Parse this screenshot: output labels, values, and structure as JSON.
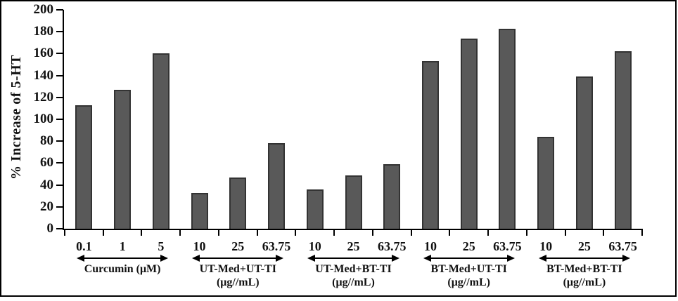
{
  "figure": {
    "background": "#ffffff",
    "frame_color": "#000000",
    "text_color": "#111111"
  },
  "chart_data": {
    "type": "bar",
    "title": "",
    "xlabel": "",
    "ylabel": "% Increase of 5-HT",
    "ylim": [
      0,
      200
    ],
    "ytick_step": 20,
    "yticks": [
      0,
      20,
      40,
      60,
      80,
      100,
      120,
      140,
      160,
      180,
      200
    ],
    "grid": false,
    "legend": false,
    "bar_fill": "#595959",
    "bar_border": "#333333",
    "axis_color": "#000000",
    "categories": [
      "0.1",
      "1",
      "5",
      "10",
      "25",
      "63.75",
      "10",
      "25",
      "63.75",
      "10",
      "25",
      "63.75",
      "10",
      "25",
      "63.75"
    ],
    "values": [
      113,
      127,
      160,
      33,
      47,
      78,
      36,
      49,
      59,
      153,
      174,
      183,
      84,
      139,
      162
    ],
    "groups": [
      {
        "label": "Curcumin (μM)",
        "label_lines": [
          "Curcumin (μM)"
        ],
        "categories": [
          "0.1",
          "1",
          "5"
        ],
        "values": [
          113,
          127,
          160
        ]
      },
      {
        "label": "UT-Med+UT-TI (μg//mL)",
        "label_lines": [
          "UT-Med+UT-TI",
          "(μg//mL)"
        ],
        "categories": [
          "10",
          "25",
          "63.75"
        ],
        "values": [
          33,
          47,
          78
        ]
      },
      {
        "label": "UT-Med+BT-TI (μg//mL)",
        "label_lines": [
          "UT-Med+BT-TI",
          "(μg//mL)"
        ],
        "categories": [
          "10",
          "25",
          "63.75"
        ],
        "values": [
          36,
          49,
          59
        ]
      },
      {
        "label": "BT-Med+UT-TI (μg//mL)",
        "label_lines": [
          "BT-Med+UT-TI",
          "(μg//mL)"
        ],
        "categories": [
          "10",
          "25",
          "63.75"
        ],
        "values": [
          153,
          174,
          183
        ]
      },
      {
        "label": "BT-Med+BT-TI (μg//mL)",
        "label_lines": [
          "BT-Med+BT-TI",
          "(μg//mL)"
        ],
        "categories": [
          "10",
          "25",
          "63.75"
        ],
        "values": [
          84,
          139,
          162
        ]
      }
    ]
  }
}
